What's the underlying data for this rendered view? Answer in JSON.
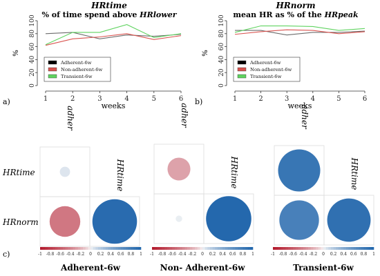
{
  "chart_data": [
    {
      "type": "line",
      "panel_label": "a)",
      "title": "HRtime",
      "subtitle_prefix": "% of time spend above ",
      "subtitle_term": "HRlower",
      "xlabel": "weeks",
      "ylabel": "%",
      "x": [
        1,
        2,
        3,
        4,
        5,
        6
      ],
      "xlim": [
        1,
        6
      ],
      "ylim": [
        0,
        100
      ],
      "yticks": [
        0,
        20,
        40,
        60,
        80,
        100
      ],
      "legend_position": "bottom-left",
      "series": [
        {
          "name": "Adherent-6w",
          "color": "#6b6b6b",
          "values": [
            80,
            82,
            72,
            78,
            76,
            79
          ]
        },
        {
          "name": "Non-adherent-6w",
          "color": "#d9534f",
          "values": [
            62,
            72,
            75,
            80,
            71,
            77
          ]
        },
        {
          "name": "Transient-6w",
          "color": "#5fd35f",
          "values": [
            63,
            82,
            82,
            94,
            74,
            80
          ]
        }
      ]
    },
    {
      "type": "line",
      "panel_label": "b)",
      "title": "HRnorm",
      "subtitle_prefix": "mean HR as % of the ",
      "subtitle_term": "HRpeak",
      "xlabel": "weeks",
      "ylabel": "%",
      "x": [
        1,
        2,
        3,
        4,
        5,
        6
      ],
      "xlim": [
        1,
        6
      ],
      "ylim": [
        0,
        100
      ],
      "yticks": [
        0,
        20,
        40,
        60,
        80,
        100
      ],
      "legend_position": "bottom-left",
      "series": [
        {
          "name": "Adherent-6w",
          "color": "#6b6b6b",
          "values": [
            85,
            85,
            78,
            82,
            82,
            84
          ]
        },
        {
          "name": "Non-adherent-6w",
          "color": "#d9534f",
          "values": [
            79,
            83,
            86,
            85,
            80,
            83
          ]
        },
        {
          "name": "Transient-6w",
          "color": "#5fd35f",
          "values": [
            82,
            92,
            92,
            91,
            85,
            88
          ]
        }
      ]
    },
    {
      "type": "heatmap",
      "panel_label": "c)",
      "variables": [
        "adher",
        "HRtime",
        "HRnorm"
      ],
      "colorbar_ticks": [
        "-1",
        "-0.8",
        "-0.6",
        "-0.4",
        "-0.2",
        "0",
        "0.2",
        "0.4",
        "0.6",
        "0.8",
        "1"
      ],
      "colorbar_range": [
        -1,
        1
      ],
      "groups": [
        {
          "name": "Adherent-6w",
          "r_adher_hrtime": 0.05,
          "r_adher_hrnorm": -0.45,
          "r_hrtime_hrnorm": 0.95
        },
        {
          "name": "Non- Adherent-6w",
          "r_adher_hrtime": -0.25,
          "r_adher_hrnorm": 0.02,
          "r_hrtime_hrnorm": 0.98
        },
        {
          "name": "Transient-6w",
          "r_adher_hrtime": 0.85,
          "r_adher_hrnorm": 0.75,
          "r_hrtime_hrnorm": 0.9
        }
      ]
    }
  ]
}
